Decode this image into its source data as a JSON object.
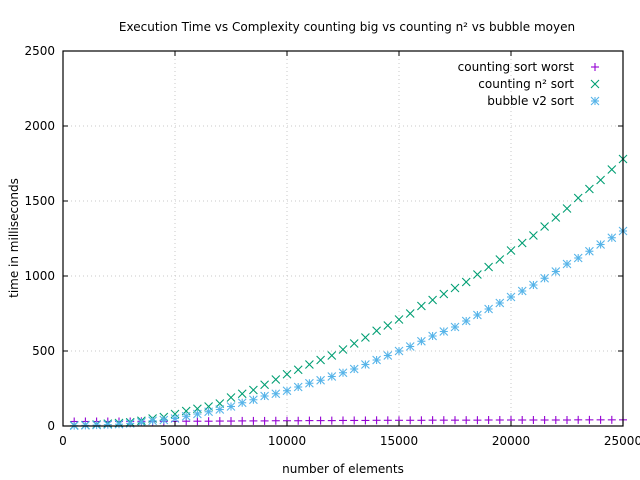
{
  "chart_data": {
    "type": "scatter",
    "title": "Execution Time vs Complexity counting big vs counting n² vs bubble moyen",
    "xlabel": "number of elements",
    "ylabel": "time in milliseconds",
    "xlim": [
      0,
      25000
    ],
    "ylim": [
      0,
      2500
    ],
    "xticks": [
      0,
      5000,
      10000,
      15000,
      20000,
      25000
    ],
    "yticks": [
      0,
      500,
      1000,
      1500,
      2000,
      2500
    ],
    "grid": true,
    "legend_position": "top-right",
    "x": [
      500,
      1000,
      1500,
      2000,
      2500,
      3000,
      3500,
      4000,
      4500,
      5000,
      5500,
      6000,
      6500,
      7000,
      7500,
      8000,
      8500,
      9000,
      9500,
      10000,
      10500,
      11000,
      11500,
      12000,
      12500,
      13000,
      13500,
      14000,
      14500,
      15000,
      15500,
      16000,
      16500,
      17000,
      17500,
      18000,
      18500,
      19000,
      19500,
      20000,
      20500,
      21000,
      21500,
      22000,
      22500,
      23000,
      23500,
      24000,
      24500,
      25000
    ],
    "series": [
      {
        "name": "counting sort worst",
        "color": "#9400d3",
        "marker": "plus",
        "values": [
          30,
          30,
          30,
          30,
          30,
          30,
          31,
          31,
          31,
          31,
          32,
          32,
          32,
          33,
          33,
          34,
          34,
          34,
          35,
          35,
          35,
          36,
          36,
          36,
          37,
          37,
          37,
          38,
          38,
          38,
          38,
          38,
          39,
          39,
          39,
          39,
          39,
          40,
          40,
          40,
          40,
          40,
          40,
          40,
          40,
          41,
          41,
          41,
          41,
          41
        ]
      },
      {
        "name": "counting n² sort",
        "color": "#009e73",
        "marker": "cross",
        "values": [
          4,
          6,
          10,
          16,
          20,
          25,
          35,
          50,
          60,
          80,
          100,
          115,
          130,
          150,
          190,
          215,
          240,
          275,
          310,
          345,
          375,
          410,
          440,
          470,
          510,
          550,
          590,
          635,
          670,
          710,
          750,
          800,
          840,
          880,
          920,
          960,
          1010,
          1060,
          1110,
          1170,
          1220,
          1270,
          1330,
          1390,
          1450,
          1520,
          1580,
          1640,
          1710,
          1780
        ]
      },
      {
        "name": "bubble v2 sort",
        "color": "#56b4e9",
        "marker": "star",
        "values": [
          2,
          4,
          6,
          9,
          12,
          17,
          25,
          35,
          40,
          50,
          65,
          80,
          95,
          110,
          130,
          155,
          175,
          200,
          215,
          235,
          260,
          285,
          305,
          330,
          355,
          380,
          410,
          440,
          470,
          500,
          530,
          565,
          600,
          630,
          660,
          700,
          740,
          780,
          820,
          860,
          900,
          940,
          985,
          1030,
          1080,
          1120,
          1165,
          1210,
          1255,
          1300
        ]
      }
    ]
  }
}
